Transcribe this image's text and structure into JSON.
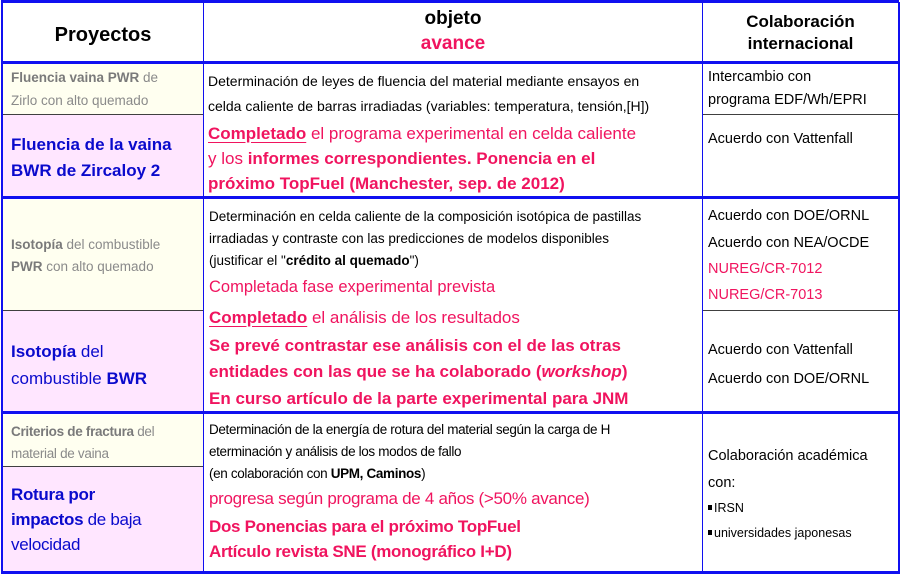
{
  "header": {
    "proyectos": "Proyectos",
    "objeto": "objeto",
    "avance": "avance",
    "colab_1": "Colaboración",
    "colab_2": "internacional"
  },
  "groups": [
    {
      "pwr_project": {
        "l1_b": "Fluencia vaina PWR",
        "l1_n": " de",
        "l2": "Zirlo con alto quemado"
      },
      "bwr_project": {
        "l1": "Fluencia de la vaina",
        "l2": "BWR de Zircaloy 2"
      },
      "objective": [
        "Determinación de leyes de fluencia del material mediante ensayos en",
        "celda caliente de barras irradiadas (variables: temperatura, tensión,[H])"
      ],
      "progress": {
        "l1_b": "Completado",
        "l1_n": " el programa experimental en celda caliente",
        "l2_n": "y los ",
        "l2_b": "informes correspondientes. Ponencia en el",
        "l3_b": "próximo TopFuel (Manchester, sep. de 2012)"
      },
      "collab_pwr": [
        "Intercambio con",
        "programa EDF/Wh/EPRI"
      ],
      "collab_bwr": [
        "Acuerdo con Vattenfall"
      ]
    },
    {
      "pwr_project": {
        "l1_b": "Isotopía",
        "l1_n": " del combustible",
        "l2_b": "PWR",
        "l2_n": " con alto quemado"
      },
      "bwr_project": {
        "l1_b": "Isotopía",
        "l1_n": " del",
        "l2_n": "combustible ",
        "l2_b": "BWR"
      },
      "objective": [
        "Determinación en celda caliente de la composición isotópica de pastillas",
        "irradiadas y contraste con las predicciones de modelos disponibles",
        "(justificar el \"",
        "crédito al quemado",
        "\")"
      ],
      "progress_pwr": "Completada fase experimental prevista",
      "progress": {
        "l1_b": "Completado",
        "l1_n": " el análisis de los resultados",
        "l2_b": "Se prevé contrastar ese análisis con el de las otras",
        "l3_b": "entidades con las que se ha colaborado (",
        "l3_i": "workshop",
        "l3_e": ")",
        "l4_b": "En curso artículo de la parte experimental para JNM"
      },
      "collab_pwr": [
        "Acuerdo con DOE/ORNL",
        "Acuerdo con NEA/OCDE",
        "NUREG/CR-7012",
        "NUREG/CR-7013"
      ],
      "collab_bwr": [
        "Acuerdo con Vattenfall",
        "Acuerdo con DOE/ORNL"
      ]
    },
    {
      "pwr_project": {
        "l1_b": "Criterios de fractura",
        "l1_n": " del",
        "l2": "material de vaina"
      },
      "bwr_project": {
        "l1_b": "Rotura por",
        "l2_b": "impactos",
        "l2_n": " de baja",
        "l3": "velocidad"
      },
      "objective": [
        "Determinación de la energía de rotura del material según la carga de H",
        "eterminación y análisis de los modos de fallo",
        "(en colaboración con ",
        "UPM, Caminos",
        ")"
      ],
      "progress_pwr": "progresa según programa de 4 años (>50% avance)",
      "progress": {
        "l1_b": "Dos Ponencias para el próximo TopFuel",
        "l2_b": "Artículo revista SNE (monográfico I+D)"
      },
      "collab": [
        "Colaboración académica",
        "con:",
        "IRSN",
        "universidades japonesas"
      ]
    }
  ],
  "colors": {
    "border": "#1010f0",
    "progress_pink": "#f0145f",
    "project_blue": "#0a0acc",
    "pwr_bg": "#fffff0",
    "bwr_bg": "#ffe6ff"
  }
}
